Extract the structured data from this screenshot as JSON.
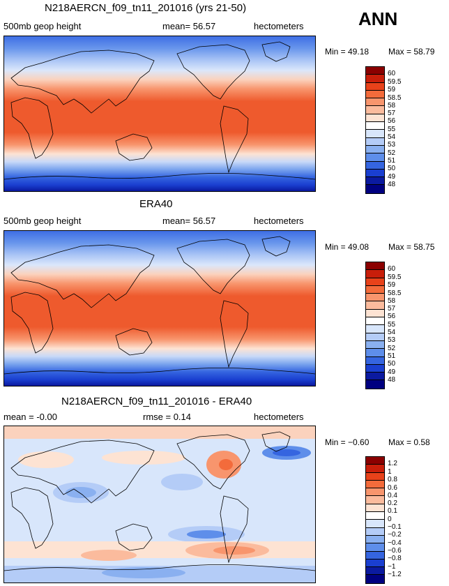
{
  "season": "ANN",
  "panels": [
    {
      "title": "N218AERCN_f09_tn11_201016 (yrs 21-50)",
      "left_label": "500mb geop height",
      "mid_label": "mean= 56.57",
      "right_label": "hectometers",
      "min_label": "Min = 49.18",
      "max_label": "Max = 58.79",
      "levels": [
        "60",
        "59.5",
        "59",
        "58.5",
        "58",
        "57",
        "56",
        "55",
        "54",
        "53",
        "52",
        "51",
        "50",
        "49",
        "48"
      ],
      "colors": [
        "#8b0000",
        "#c81e0a",
        "#e8421a",
        "#f36b3b",
        "#f8956d",
        "#fbbb9d",
        "#fde3d3",
        "#ffffff",
        "#d8e6fb",
        "#b4ccf7",
        "#8ab0f0",
        "#5e8eea",
        "#3565e0",
        "#1a3fd0",
        "#0b1aa0",
        "#000080"
      ]
    },
    {
      "title": "ERA40",
      "left_label": "500mb geop height",
      "mid_label": "mean= 56.57",
      "right_label": "hectometers",
      "min_label": "Min = 49.08",
      "max_label": "Max = 58.75",
      "levels": [
        "60",
        "59.5",
        "59",
        "58.5",
        "58",
        "57",
        "56",
        "55",
        "54",
        "53",
        "52",
        "51",
        "50",
        "49",
        "48"
      ],
      "colors": [
        "#8b0000",
        "#c81e0a",
        "#e8421a",
        "#f36b3b",
        "#f8956d",
        "#fbbb9d",
        "#fde3d3",
        "#ffffff",
        "#d8e6fb",
        "#b4ccf7",
        "#8ab0f0",
        "#5e8eea",
        "#3565e0",
        "#1a3fd0",
        "#0b1aa0",
        "#000080"
      ]
    },
    {
      "title": "N218AERCN_f09_tn11_201016 - ERA40",
      "left_label": "mean = -0.00",
      "mid_label": "rmse = 0.14",
      "right_label": "hectometers",
      "min_label": "Min = −0.60",
      "max_label": "Max = 0.58",
      "levels": [
        "1.2",
        "1",
        "0.8",
        "0.6",
        "0.4",
        "0.2",
        "0.1",
        "0",
        "−0.1",
        "−0.2",
        "−0.4",
        "−0.6",
        "−0.8",
        "−1",
        "−1.2"
      ],
      "colors": [
        "#8b0000",
        "#c81e0a",
        "#e8421a",
        "#f36b3b",
        "#f8956d",
        "#fbbb9d",
        "#fde3d3",
        "#ffffff",
        "#d8e6fb",
        "#b4ccf7",
        "#8ab0f0",
        "#5e8eea",
        "#3565e0",
        "#1a3fd0",
        "#0b1aa0",
        "#000080"
      ]
    }
  ]
}
